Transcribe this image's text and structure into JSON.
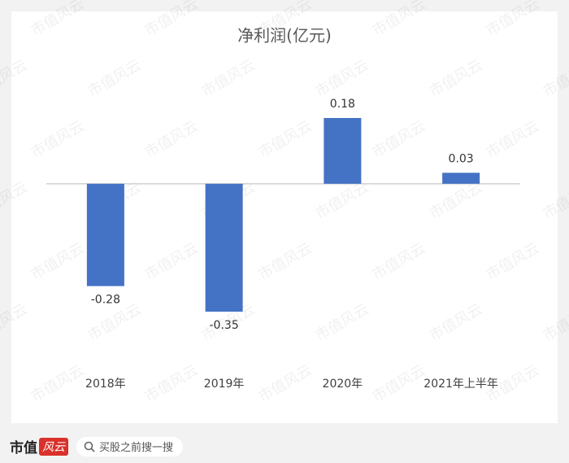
{
  "chart_data": {
    "type": "bar",
    "title": "净利润(亿元)",
    "categories": [
      "2018年",
      "2019年",
      "2020年",
      "2021年上半年"
    ],
    "values": [
      -0.28,
      -0.35,
      0.18,
      0.03
    ],
    "color": "#4472c4"
  },
  "watermark": "市值风云",
  "footer": {
    "brand": "市值",
    "brand_mark": "风云",
    "search": "买股之前搜一搜"
  }
}
